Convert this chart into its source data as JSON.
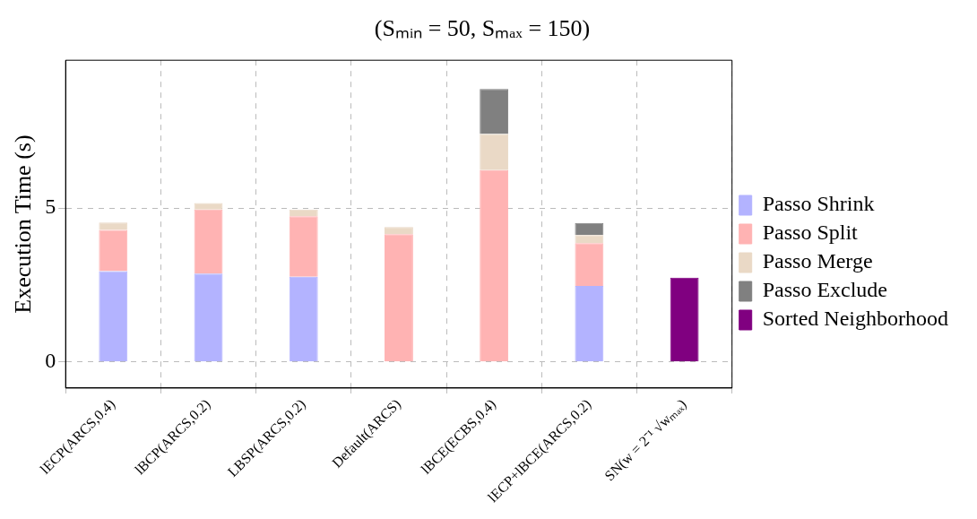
{
  "chart_data": {
    "type": "bar",
    "title": "(Sₘᵢₙ = 50, Sₘₐₓ = 150)",
    "ylabel": "Execution Time (s)",
    "categories": [
      "lECP(ARCS,0.4)",
      "lBCP(ARCS,0.2)",
      "LBSP(ARCS,0.2)",
      "Default(ARCS)",
      "lBCE(ECBS,0.4)",
      "lECP+lBCE(ARCS,0.2)",
      "SN(w = 2⁻¹ √wₘₐₓ)"
    ],
    "stacked": true,
    "series": [
      {
        "name": "Passo Shrink",
        "color": "#b3b3ff",
        "values": [
          2.95,
          2.87,
          2.77,
          0,
          0,
          2.47,
          0
        ]
      },
      {
        "name": "Passo Split",
        "color": "#ffb3b3",
        "values": [
          1.34,
          2.08,
          1.96,
          4.15,
          6.23,
          1.39,
          null
        ]
      },
      {
        "name": "Passo Merge",
        "color": "#ead9c6",
        "values": [
          0.24,
          0.21,
          0.22,
          0.23,
          1.17,
          0.26,
          null
        ]
      },
      {
        "name": "Passo Exclude",
        "color": "#808080",
        "values": [
          null,
          null,
          null,
          null,
          1.47,
          0.39,
          null
        ]
      },
      {
        "name": "Sorted Neighborhood",
        "color": "#800080",
        "values": [
          null,
          null,
          null,
          null,
          null,
          null,
          2.74
        ]
      }
    ],
    "ylim": [
      -0.85,
      9.8
    ],
    "yticks": [
      0,
      5
    ],
    "grid": true,
    "legend": "right"
  }
}
